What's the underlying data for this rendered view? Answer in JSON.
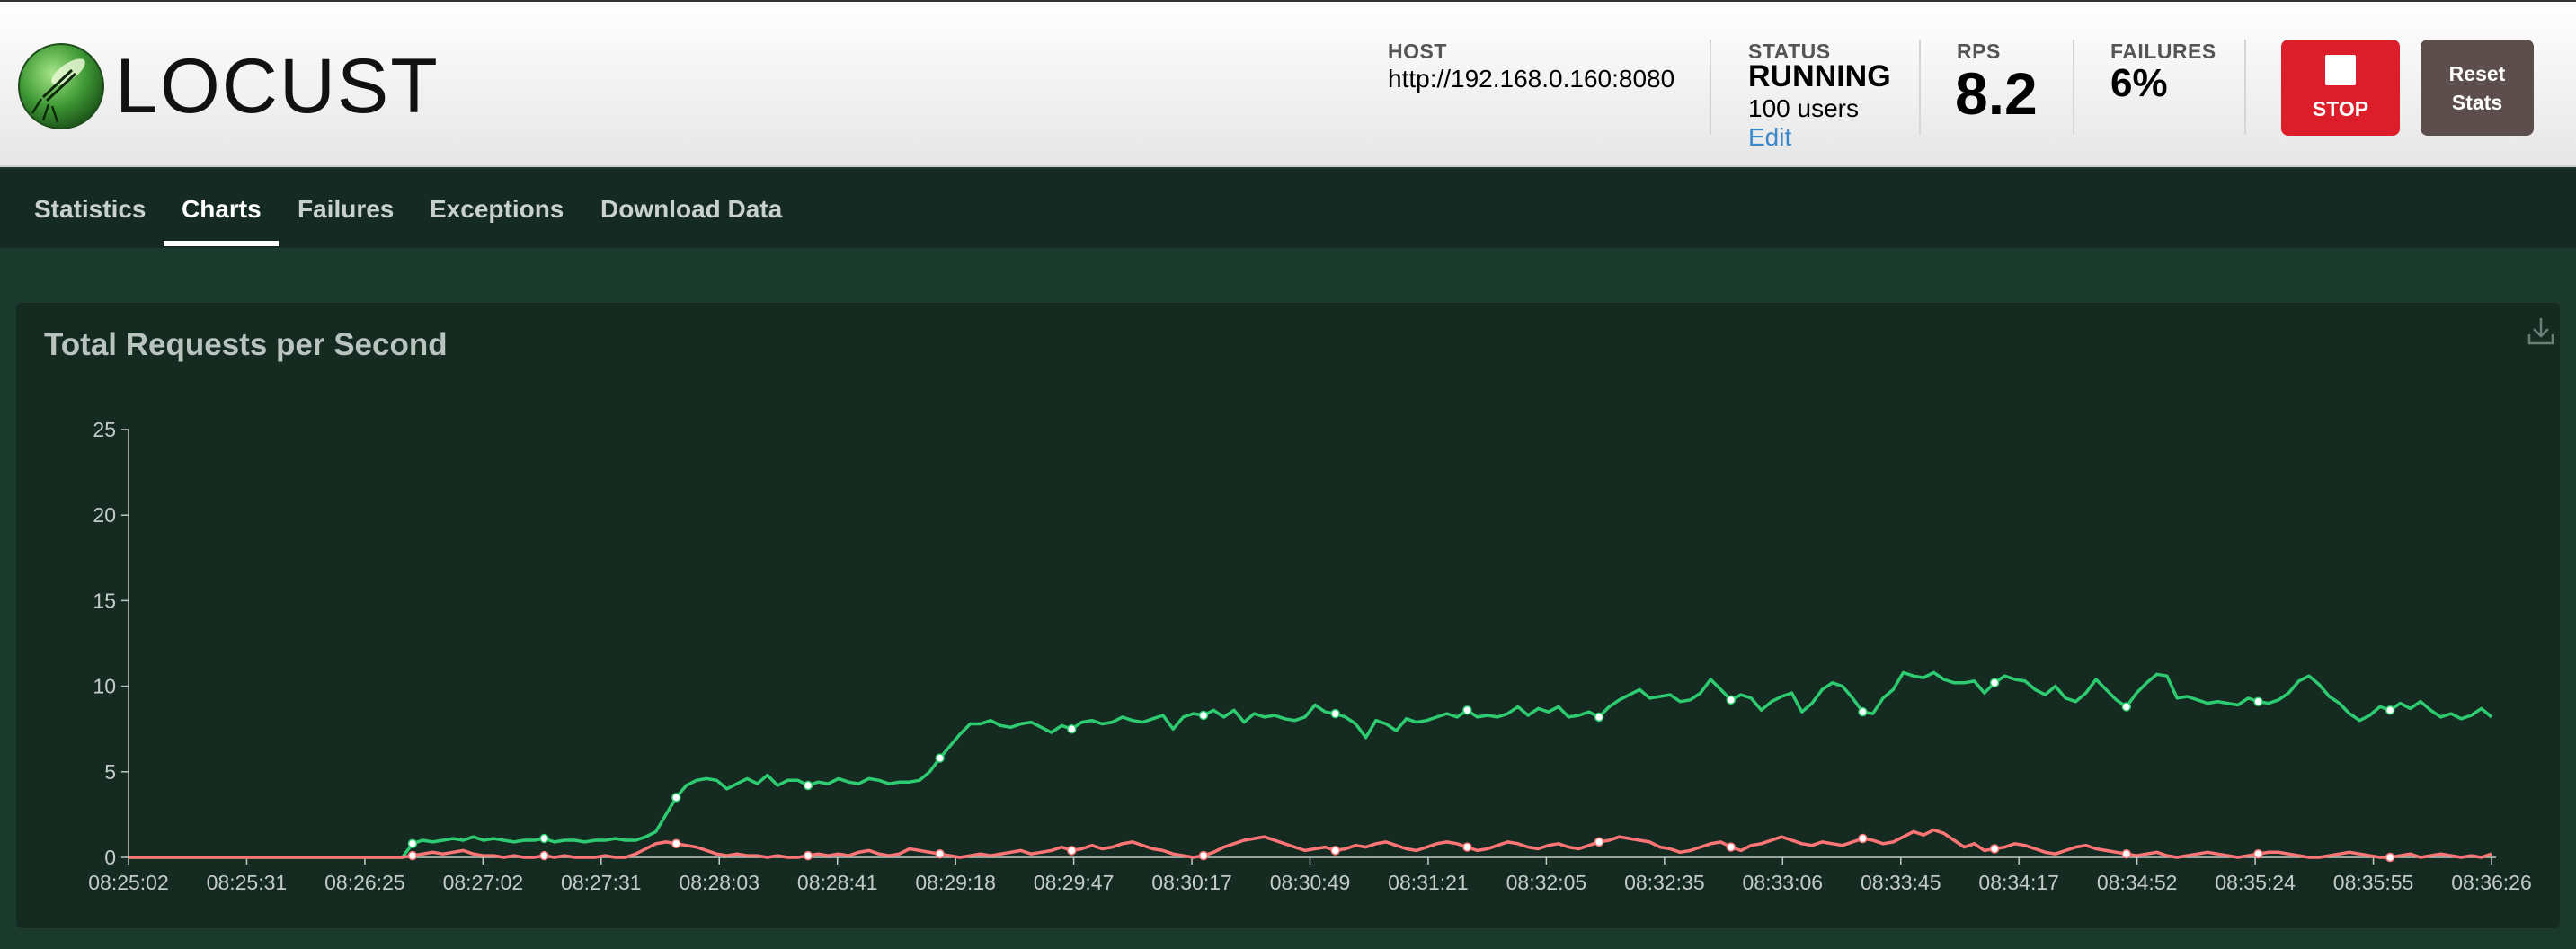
{
  "header": {
    "brand": "LOCUST",
    "host_label": "HOST",
    "host_value": "http://192.168.0.160:8080",
    "status_label": "STATUS",
    "status_value": "RUNNING",
    "users": "100 users",
    "edit_label": "Edit",
    "rps_label": "RPS",
    "rps_value": "8.2",
    "failures_label": "FAILURES",
    "failures_value": "6%",
    "stop_label": "STOP",
    "reset_label": "Reset Stats"
  },
  "tabs": [
    {
      "label": "Statistics"
    },
    {
      "label": "Charts"
    },
    {
      "label": "Failures"
    },
    {
      "label": "Exceptions"
    },
    {
      "label": "Download Data"
    }
  ],
  "active_tab": "Charts",
  "colors": {
    "rps_line": "#2ecc71",
    "failures_line": "#ff7575",
    "stop_button": "#dc1e2b",
    "reset_button": "#5b4e4c",
    "link": "#3a87c9"
  },
  "chart_data": {
    "type": "line",
    "title": "Total Requests per Second",
    "ylim": [
      0,
      25
    ],
    "y_ticks": [
      0,
      5,
      10,
      15,
      20,
      25
    ],
    "grid": false,
    "x_ticks": [
      "08:25:02",
      "08:25:31",
      "08:26:25",
      "08:27:02",
      "08:27:31",
      "08:28:03",
      "08:28:41",
      "08:29:18",
      "08:29:47",
      "08:30:17",
      "08:30:49",
      "08:31:21",
      "08:32:05",
      "08:32:35",
      "08:33:06",
      "08:33:45",
      "08:34:17",
      "08:34:52",
      "08:35:24",
      "08:35:55",
      "08:36:26"
    ],
    "series": [
      {
        "color": "#2ecc71",
        "values": [
          0,
          0,
          0,
          0,
          0,
          0,
          0,
          0,
          0,
          0,
          0,
          0,
          0,
          0,
          0,
          0,
          0,
          0,
          0,
          0,
          0,
          0,
          0,
          0,
          0,
          0,
          0,
          0,
          0.8,
          1.0,
          0.9,
          1.0,
          1.1,
          1.0,
          1.2,
          1.0,
          1.1,
          1.0,
          0.9,
          1.0,
          1.0,
          1.1,
          0.9,
          1.0,
          1.0,
          0.9,
          1.0,
          1.0,
          1.1,
          1.0,
          1.0,
          1.2,
          1.5,
          2.5,
          3.5,
          4.2,
          4.5,
          4.6,
          4.5,
          4.0,
          4.3,
          4.6,
          4.3,
          4.8,
          4.2,
          4.5,
          4.5,
          4.2,
          4.4,
          4.3,
          4.6,
          4.4,
          4.3,
          4.6,
          4.5,
          4.3,
          4.4,
          4.4,
          4.5,
          5.0,
          5.8,
          6.5,
          7.2,
          7.8,
          7.8,
          8.0,
          7.7,
          7.6,
          7.8,
          7.9,
          7.6,
          7.3,
          7.7,
          7.5,
          7.9,
          8.0,
          7.8,
          7.9,
          8.2,
          8.0,
          7.9,
          8.1,
          8.3,
          7.5,
          8.2,
          8.4,
          8.3,
          8.6,
          8.2,
          8.6,
          7.9,
          8.4,
          8.2,
          8.3,
          8.1,
          8.0,
          8.2,
          8.9,
          8.5,
          8.4,
          8.2,
          7.8,
          7.0,
          8.0,
          7.8,
          7.4,
          8.1,
          7.9,
          8.0,
          8.2,
          8.4,
          8.2,
          8.6,
          8.2,
          8.3,
          8.2,
          8.4,
          8.8,
          8.3,
          8.7,
          8.5,
          8.8,
          8.2,
          8.3,
          8.5,
          8.2,
          8.8,
          9.2,
          9.5,
          9.8,
          9.3,
          9.4,
          9.5,
          9.1,
          9.2,
          9.6,
          10.4,
          9.8,
          9.2,
          9.5,
          9.3,
          8.6,
          9.1,
          9.4,
          9.6,
          8.5,
          9.0,
          9.8,
          10.2,
          10.0,
          9.3,
          8.5,
          8.4,
          9.3,
          9.8,
          10.8,
          10.6,
          10.5,
          10.8,
          10.4,
          10.2,
          10.2,
          10.3,
          9.6,
          10.2,
          10.6,
          10.4,
          10.3,
          9.8,
          9.5,
          10.0,
          9.3,
          9.1,
          9.6,
          10.4,
          9.8,
          9.2,
          8.8,
          9.6,
          10.2,
          10.7,
          10.6,
          9.3,
          9.4,
          9.2,
          9.0,
          9.1,
          9.0,
          8.9,
          9.3,
          9.1,
          9.0,
          9.2,
          9.6,
          10.3,
          10.6,
          10.1,
          9.4,
          9.0,
          8.4,
          8.0,
          8.3,
          8.8,
          8.6,
          9.0,
          8.7,
          9.1,
          8.6,
          8.2,
          8.4,
          8.1,
          8.3,
          8.7,
          8.2
        ]
      },
      {
        "color": "#ff7575",
        "values": [
          0,
          0,
          0,
          0,
          0,
          0,
          0,
          0,
          0,
          0,
          0,
          0,
          0,
          0,
          0,
          0,
          0,
          0,
          0,
          0,
          0,
          0,
          0,
          0,
          0,
          0,
          0,
          0,
          0.1,
          0.2,
          0.3,
          0.2,
          0.3,
          0.4,
          0.2,
          0.1,
          0.1,
          0.0,
          0.1,
          0.0,
          0.0,
          0.1,
          0.0,
          0.1,
          0.0,
          0.0,
          0.0,
          0.1,
          0.0,
          0.0,
          0.2,
          0.5,
          0.8,
          0.9,
          0.8,
          0.7,
          0.6,
          0.4,
          0.2,
          0.1,
          0.2,
          0.1,
          0.1,
          0.0,
          0.1,
          0.0,
          0.0,
          0.1,
          0.2,
          0.1,
          0.2,
          0.1,
          0.3,
          0.4,
          0.2,
          0.1,
          0.2,
          0.5,
          0.4,
          0.3,
          0.2,
          0.1,
          0.0,
          0.1,
          0.2,
          0.1,
          0.2,
          0.3,
          0.4,
          0.2,
          0.3,
          0.4,
          0.6,
          0.4,
          0.5,
          0.7,
          0.5,
          0.6,
          0.8,
          0.9,
          0.7,
          0.5,
          0.4,
          0.2,
          0.1,
          0.0,
          0.1,
          0.3,
          0.6,
          0.8,
          1.0,
          1.1,
          1.2,
          1.0,
          0.8,
          0.6,
          0.4,
          0.5,
          0.6,
          0.4,
          0.5,
          0.7,
          0.6,
          0.8,
          0.9,
          0.7,
          0.5,
          0.4,
          0.6,
          0.8,
          0.9,
          0.8,
          0.6,
          0.4,
          0.5,
          0.7,
          0.9,
          0.8,
          0.6,
          0.5,
          0.7,
          0.8,
          0.6,
          0.5,
          0.7,
          0.9,
          1.0,
          1.2,
          1.1,
          1.0,
          0.9,
          0.6,
          0.5,
          0.3,
          0.4,
          0.6,
          0.8,
          0.9,
          0.6,
          0.4,
          0.7,
          0.8,
          1.0,
          1.2,
          1.0,
          0.8,
          0.7,
          0.9,
          0.8,
          0.7,
          0.9,
          1.1,
          1.0,
          0.8,
          0.9,
          1.2,
          1.5,
          1.3,
          1.6,
          1.4,
          1.0,
          0.6,
          0.8,
          0.4,
          0.5,
          0.6,
          0.8,
          0.7,
          0.5,
          0.3,
          0.2,
          0.4,
          0.6,
          0.7,
          0.5,
          0.4,
          0.3,
          0.2,
          0.1,
          0.2,
          0.3,
          0.1,
          0.0,
          0.1,
          0.2,
          0.3,
          0.2,
          0.1,
          0.0,
          0.1,
          0.2,
          0.3,
          0.3,
          0.2,
          0.1,
          0.0,
          0.0,
          0.1,
          0.2,
          0.3,
          0.2,
          0.1,
          0.0,
          0.0,
          0.1,
          0.2,
          0.0,
          0.1,
          0.2,
          0.1,
          0.0,
          0.1,
          0.0,
          0.2
        ]
      }
    ]
  }
}
